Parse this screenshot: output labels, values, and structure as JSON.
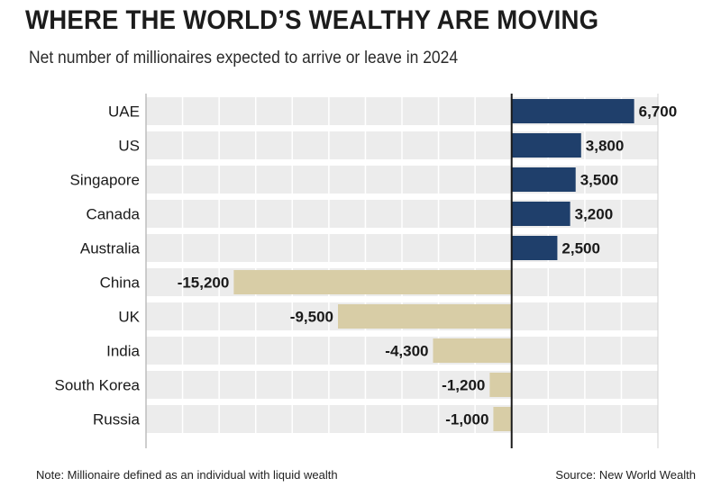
{
  "header": {
    "title": "WHERE THE WORLD’S WEALTHY ARE MOVING",
    "subtitle": "Net number of millionaires expected to arrive or leave in 2024"
  },
  "footer": {
    "note": "Note: Millionaire defined as an individual with liquid wealth",
    "source": "Source: New World Wealth"
  },
  "colors": {
    "positive": "#1f3f6b",
    "negative": "#d8cda6",
    "row_band": "#ececec",
    "grid": "#ffffff",
    "axis": "#1a1a1a"
  },
  "chart_data": {
    "type": "bar",
    "orientation": "horizontal",
    "title": "WHERE THE WORLD’S WEALTHY ARE MOVING",
    "subtitle": "Net number of millionaires expected to arrive or leave in 2024",
    "categories": [
      "UAE",
      "US",
      "Singapore",
      "Canada",
      "Australia",
      "China",
      "UK",
      "India",
      "South Korea",
      "Russia"
    ],
    "values": [
      6700,
      3800,
      3500,
      3200,
      2500,
      -15200,
      -9500,
      -4300,
      -1200,
      -1000
    ],
    "value_labels": [
      "6,700",
      "3,800",
      "3,500",
      "3,200",
      "2,500",
      "-15,200",
      "-9,500",
      "-4,300",
      "-1,200",
      "-1,000"
    ],
    "xlim": [
      -20000,
      8000
    ],
    "grid_step": 2000,
    "grid": true,
    "xlabel": "",
    "ylabel": ""
  }
}
